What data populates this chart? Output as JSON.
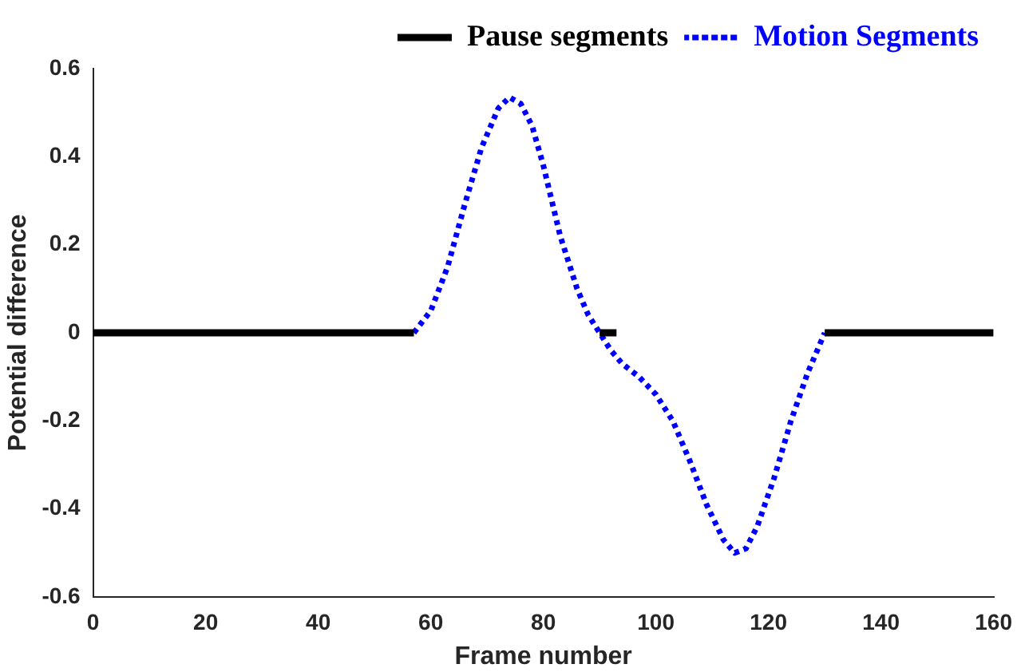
{
  "chart_data": {
    "type": "line",
    "xlabel": "Frame number",
    "ylabel": "Potential difference",
    "xlim": [
      0,
      160
    ],
    "xticks": [
      0,
      20,
      40,
      60,
      80,
      100,
      120,
      140,
      160
    ],
    "ylim": [
      -0.6,
      0.6
    ],
    "yticks": [
      -0.6,
      -0.4,
      -0.2,
      0,
      0.2,
      0.4,
      0.6
    ],
    "grid": false,
    "legend": "top right",
    "marker": "none",
    "series": [
      {
        "name": "Pause segments",
        "color": "#000000",
        "line_style": "solid",
        "x": [
          0,
          57,
          75,
          90,
          93,
          110,
          130,
          160
        ],
        "values": [
          0,
          0,
          null,
          0,
          0,
          null,
          0,
          0
        ]
      },
      {
        "name": "Motion Segments",
        "color": "#0000ff",
        "line_style": "dotted",
        "x": [
          57,
          60,
          63,
          66,
          69,
          72,
          74,
          76,
          78,
          80,
          83,
          86,
          88,
          90,
          92,
          94,
          97,
          100,
          103,
          106,
          109,
          112,
          114,
          116,
          118,
          121,
          124,
          127,
          130
        ],
        "values": [
          0,
          0.05,
          0.15,
          0.29,
          0.42,
          0.51,
          0.535,
          0.52,
          0.47,
          0.38,
          0.22,
          0.1,
          0.04,
          0,
          -0.04,
          -0.07,
          -0.1,
          -0.14,
          -0.2,
          -0.29,
          -0.39,
          -0.47,
          -0.5,
          -0.49,
          -0.44,
          -0.33,
          -0.2,
          -0.09,
          0
        ]
      }
    ]
  }
}
